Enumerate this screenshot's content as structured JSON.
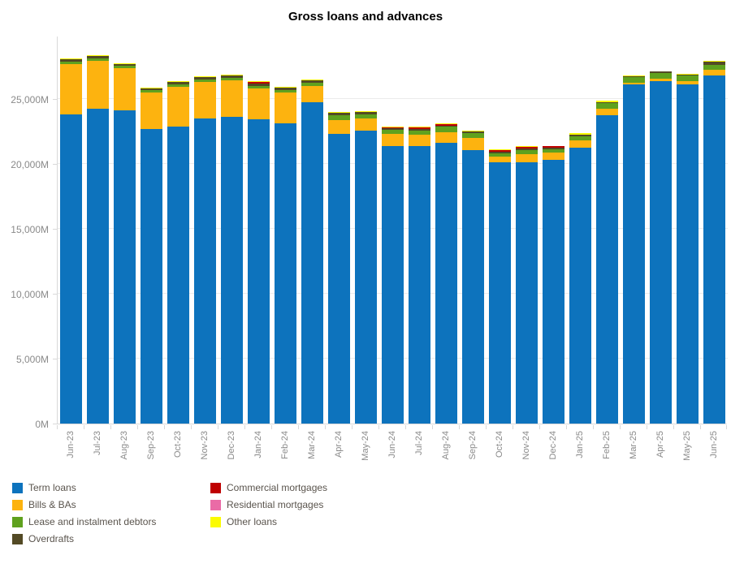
{
  "chart_data": {
    "type": "bar",
    "stacked": true,
    "title": "Gross loans and advances",
    "unit": "M",
    "ylim": [
      0,
      29875
    ],
    "grid": true,
    "legend_position": "bottom-left",
    "y_ticks": [
      {
        "label": "0M",
        "value": 0
      },
      {
        "label": "5,000M",
        "value": 5000
      },
      {
        "label": "10,000M",
        "value": 10000
      },
      {
        "label": "15,000M",
        "value": 15000
      },
      {
        "label": "20,000M",
        "value": 20000
      },
      {
        "label": "25,000M",
        "value": 25000
      }
    ],
    "categories": [
      "Jun-23",
      "Jul-23",
      "Aug-23",
      "Sep-23",
      "Oct-23",
      "Nov-23",
      "Dec-23",
      "Jan-24",
      "Feb-24",
      "Mar-24",
      "Apr-24",
      "May-24",
      "Jun-24",
      "Jul-24",
      "Aug-24",
      "Sep-24",
      "Oct-24",
      "Nov-24",
      "Dec-24",
      "Jan-25",
      "Feb-25",
      "Mar-25",
      "Apr-25",
      "May-25",
      "Jun-25"
    ],
    "series": [
      {
        "name": "Term loans",
        "color": "#0d73bd",
        "values": [
          23800,
          24250,
          24125,
          22700,
          22900,
          23500,
          23600,
          23450,
          23150,
          24750,
          22300,
          22550,
          21350,
          21350,
          21625,
          21050,
          20100,
          20150,
          20300,
          21250,
          23750,
          26100,
          26400,
          26100,
          26800
        ]
      },
      {
        "name": "Bills & BAs",
        "color": "#fdb30f",
        "values": [
          3890,
          3675,
          3225,
          2800,
          3030,
          2815,
          2835,
          2350,
          2330,
          1240,
          1070,
          930,
          950,
          915,
          825,
          960,
          450,
          610,
          550,
          560,
          510,
          160,
          150,
          250,
          420
        ]
      },
      {
        "name": "Lease and instalment debtors",
        "color": "#5fa11e",
        "values": [
          200,
          200,
          190,
          190,
          200,
          200,
          210,
          220,
          230,
          250,
          380,
          330,
          300,
          320,
          420,
          350,
          280,
          300,
          290,
          320,
          450,
          450,
          450,
          450,
          420
        ]
      },
      {
        "name": "Overdrafts",
        "color": "#534a25",
        "values": [
          200,
          175,
          150,
          150,
          160,
          175,
          170,
          150,
          170,
          180,
          180,
          170,
          130,
          130,
          100,
          130,
          110,
          110,
          120,
          140,
          60,
          30,
          100,
          80,
          230
        ]
      },
      {
        "name": "Commercial mortgages",
        "color": "#bf0000",
        "values": [
          0,
          0,
          0,
          0,
          0,
          0,
          0,
          120,
          0,
          0,
          0,
          0,
          110,
          100,
          120,
          0,
          120,
          130,
          90,
          0,
          0,
          0,
          0,
          0,
          0
        ]
      },
      {
        "name": "Residential mortgages",
        "color": "#ea6ba6",
        "values": [
          0,
          0,
          0,
          0,
          0,
          0,
          0,
          0,
          0,
          0,
          0,
          0,
          0,
          0,
          0,
          0,
          0,
          0,
          0,
          0,
          0,
          0,
          0,
          0,
          0
        ]
      },
      {
        "name": "Other loans",
        "color": "#fbfb02",
        "values": [
          60,
          75,
          60,
          60,
          60,
          60,
          60,
          60,
          70,
          80,
          70,
          70,
          60,
          60,
          60,
          60,
          40,
          50,
          50,
          80,
          80,
          60,
          50,
          70,
          90
        ]
      }
    ],
    "legend_columns": [
      [
        0,
        1,
        2,
        3
      ],
      [
        4,
        5,
        6
      ]
    ]
  }
}
